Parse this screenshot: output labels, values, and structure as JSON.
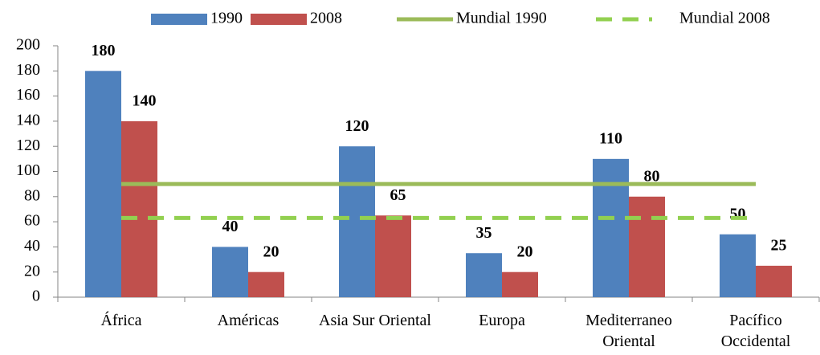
{
  "chart_data": {
    "type": "bar",
    "categories": [
      "África",
      "Américas",
      "Asia Sur Oriental",
      "Europa",
      "Mediterraneo Oriental",
      "Pacífico Occidental"
    ],
    "series": [
      {
        "name": "1990",
        "color": "#4f81bd",
        "values": [
          180,
          40,
          120,
          35,
          110,
          50
        ]
      },
      {
        "name": "2008",
        "color": "#c0504d",
        "values": [
          140,
          20,
          65,
          20,
          80,
          25
        ]
      },
      {
        "name": "Mundial 1990",
        "color": "#9bbb59",
        "kind": "line",
        "values": [
          90,
          90,
          90,
          90,
          90,
          90
        ]
      },
      {
        "name": "Mundial 2008",
        "color": "#92d050",
        "kind": "line",
        "dashed": true,
        "values": [
          63,
          63,
          63,
          63,
          63,
          63
        ]
      }
    ],
    "ylim": [
      0,
      200
    ],
    "yticks": [
      0,
      20,
      40,
      60,
      80,
      100,
      120,
      140,
      160,
      180,
      200
    ],
    "grid": false,
    "legend": "top"
  }
}
